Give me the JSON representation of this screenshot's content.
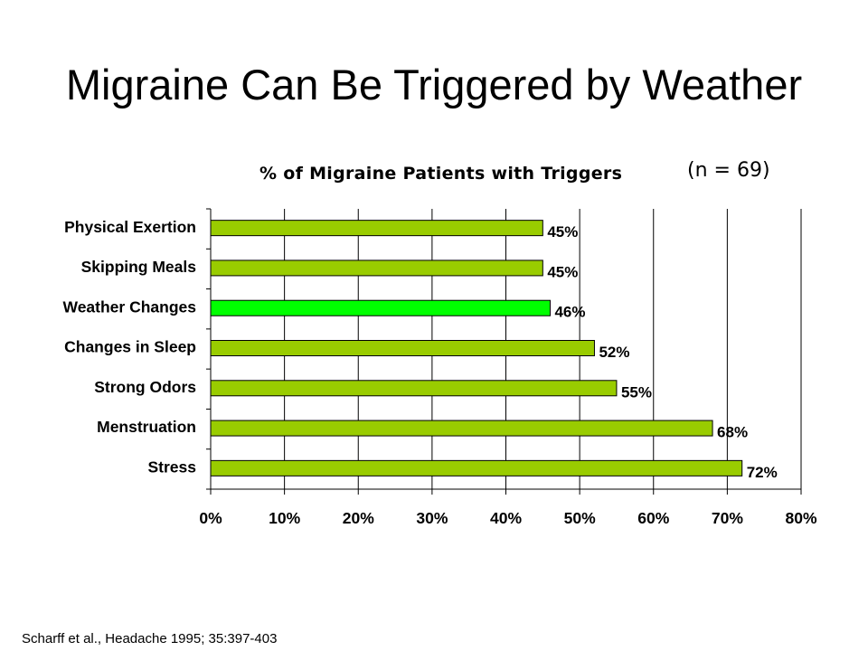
{
  "slide": {
    "title": "Migraine Can Be Triggered by Weather",
    "citation": "Scharff et al., Headache 1995; 35:397-403"
  },
  "chart_data": {
    "type": "bar",
    "orientation": "horizontal",
    "title": "% of Migraine Patients with Triggers",
    "note": "(n = 69)",
    "categories": [
      "Physical Exertion",
      "Skipping Meals",
      "Weather Changes",
      "Changes in Sleep",
      "Strong Odors",
      "Menstruation",
      "Stress"
    ],
    "values": [
      45,
      45,
      46,
      52,
      55,
      68,
      72
    ],
    "value_labels": [
      "45%",
      "45%",
      "46%",
      "52%",
      "55%",
      "68%",
      "72%"
    ],
    "highlight_category": "Weather Changes",
    "xlim": [
      0,
      80
    ],
    "x_ticks": [
      "0%",
      "10%",
      "20%",
      "30%",
      "40%",
      "50%",
      "60%",
      "70%",
      "80%"
    ],
    "grid": "vertical",
    "legend": "none",
    "colors": {
      "bar": "#99cc00",
      "highlight_bar": "#00ff00",
      "bar_stroke": "#000000",
      "grid": "#000000"
    }
  }
}
